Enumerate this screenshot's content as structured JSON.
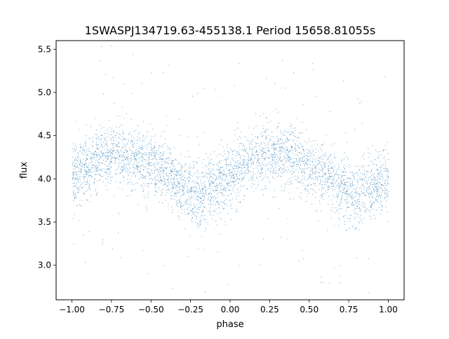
{
  "chart_data": {
    "type": "scatter",
    "title": "1SWASPJ134719.63-455138.1 Period 15658.81055s",
    "xlabel": "phase",
    "ylabel": "flux",
    "xlim": [
      -1.1,
      1.1
    ],
    "ylim": [
      2.6,
      5.6
    ],
    "xticks": [
      -1.0,
      -0.75,
      -0.5,
      -0.25,
      0.0,
      0.25,
      0.5,
      0.75,
      1.0
    ],
    "xtick_labels": [
      "−1.00",
      "−0.75",
      "−0.50",
      "−0.25",
      "0.00",
      "0.25",
      "0.50",
      "0.75",
      "1.00"
    ],
    "yticks": [
      3.0,
      3.5,
      4.0,
      4.5,
      5.0,
      5.5
    ],
    "ytick_labels": [
      "3.0",
      "3.5",
      "4.0",
      "4.5",
      "5.0",
      "5.5"
    ],
    "grid": false,
    "legend": "none",
    "marker_color": "#1f77b4",
    "series": [
      {
        "x": [
          -1.0,
          -0.9,
          -0.8,
          -0.7,
          -0.6,
          -0.5,
          -0.4,
          -0.3,
          -0.2,
          -0.1,
          0.0,
          0.1,
          0.2,
          0.3,
          0.4,
          0.5,
          0.6,
          0.7,
          0.8,
          0.9,
          1.0
        ],
        "y": [
          4.05,
          4.15,
          4.25,
          4.3,
          4.25,
          4.15,
          4.05,
          3.9,
          3.8,
          3.9,
          4.05,
          4.15,
          4.25,
          4.3,
          4.25,
          4.15,
          4.05,
          3.9,
          3.8,
          3.9,
          4.0
        ],
        "spread": 0.18
      }
    ]
  }
}
